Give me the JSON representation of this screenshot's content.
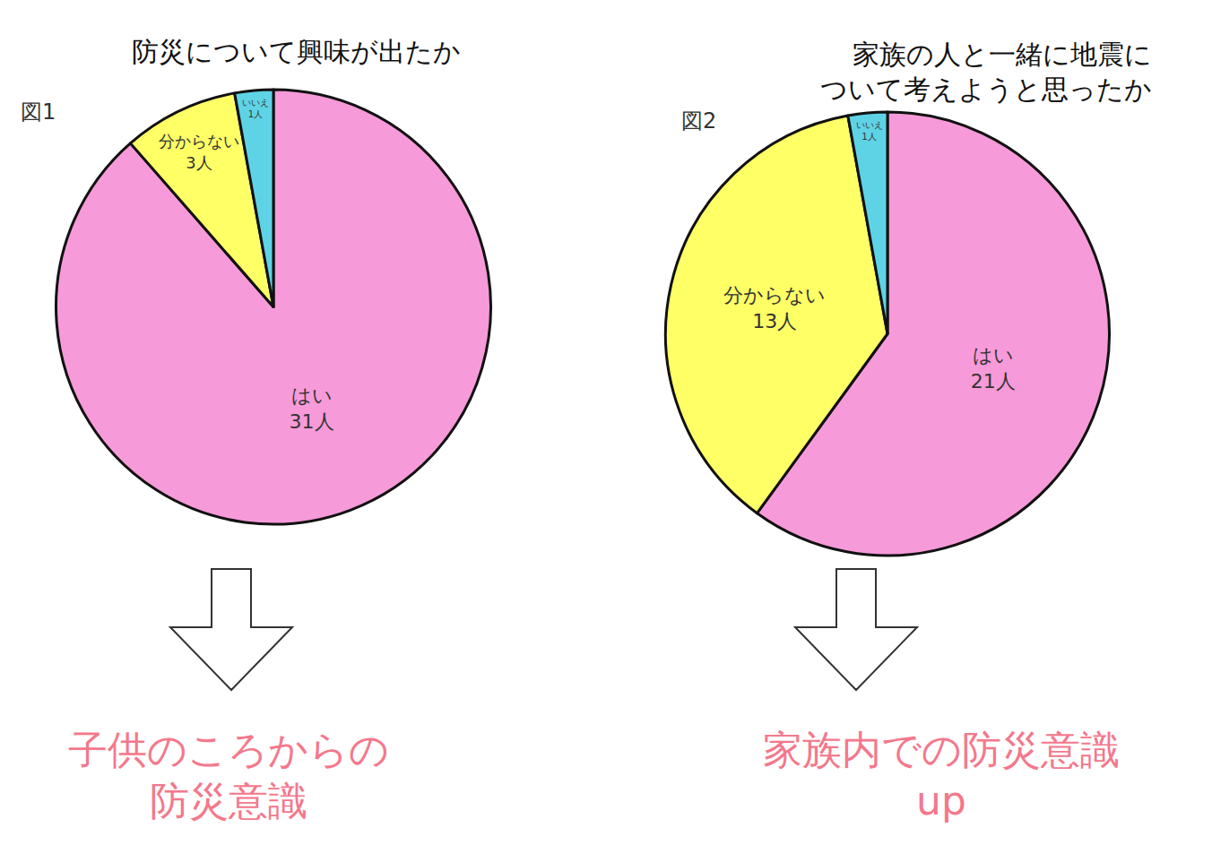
{
  "chart_data": [
    {
      "type": "pie",
      "title": [
        "防災について興味が出たか"
      ],
      "label": "図1",
      "categories": [
        "はい",
        "分からない",
        "いいえ"
      ],
      "values": [
        31,
        3,
        1
      ],
      "value_labels": [
        "31人",
        "3人",
        "1人"
      ],
      "data_labels": true,
      "colors": [
        "#f79ad9",
        "#ffff66",
        "#5fd3e6"
      ],
      "annotations": [
        [
          "子供のころからの",
          "防災意識"
        ]
      ]
    },
    {
      "type": "pie",
      "title": [
        "家族の人と一緒に地震に",
        "ついて考えようと思ったか"
      ],
      "label": "図2",
      "categories": [
        "はい",
        "分からない",
        "いいえ"
      ],
      "values": [
        21,
        13,
        1
      ],
      "value_labels": [
        "21人",
        "13人",
        "1人"
      ],
      "data_labels": true,
      "colors": [
        "#f79ad9",
        "#ffff66",
        "#5fd3e6"
      ],
      "annotations": [
        [
          "家族内での防災意識",
          "up"
        ]
      ]
    }
  ]
}
